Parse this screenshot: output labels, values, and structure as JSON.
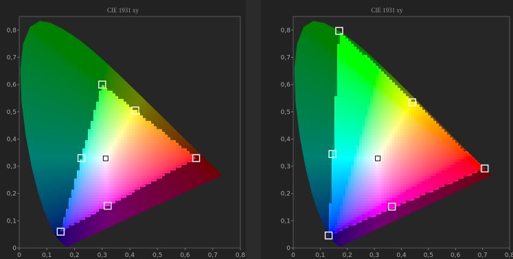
{
  "chart_data": [
    {
      "type": "scatter",
      "title": "CIE 1931 xy",
      "xlabel": "",
      "ylabel": "",
      "xlim": [
        0,
        0.8
      ],
      "ylim": [
        0,
        0.85
      ],
      "x_ticks": [
        "0",
        "0,1",
        "0,2",
        "0,3",
        "0,4",
        "0,5",
        "0,6",
        "0,7",
        "0,8"
      ],
      "y_ticks": [
        "0",
        "0,1",
        "0,2",
        "0,3",
        "0,4",
        "0,5",
        "0,6",
        "0,7",
        "0,8"
      ],
      "grid": false,
      "gamut_triangle": [
        [
          0.64,
          0.33
        ],
        [
          0.3,
          0.6
        ],
        [
          0.15,
          0.06
        ]
      ],
      "markers": [
        {
          "x": 0.64,
          "y": 0.33
        },
        {
          "x": 0.3,
          "y": 0.6
        },
        {
          "x": 0.15,
          "y": 0.06
        },
        {
          "x": 0.225,
          "y": 0.33
        },
        {
          "x": 0.42,
          "y": 0.505
        },
        {
          "x": 0.32,
          "y": 0.155
        },
        {
          "x": 0.3127,
          "y": 0.329
        }
      ]
    },
    {
      "type": "scatter",
      "title": "CIE 1931 xy",
      "xlabel": "",
      "ylabel": "",
      "xlim": [
        0,
        0.8
      ],
      "ylim": [
        0,
        0.85
      ],
      "x_ticks": [
        "0",
        "0,1",
        "0,2",
        "0,3",
        "0,4",
        "0,5",
        "0,6",
        "0,7",
        "0,8"
      ],
      "y_ticks": [
        "0",
        "0,1",
        "0,2",
        "0,3",
        "0,4",
        "0,5",
        "0,6",
        "0,7",
        "0,8"
      ],
      "grid": false,
      "gamut_triangle": [
        [
          0.708,
          0.292
        ],
        [
          0.17,
          0.797
        ],
        [
          0.131,
          0.046
        ]
      ],
      "markers": [
        {
          "x": 0.708,
          "y": 0.292
        },
        {
          "x": 0.17,
          "y": 0.797
        },
        {
          "x": 0.131,
          "y": 0.046
        },
        {
          "x": 0.145,
          "y": 0.345
        },
        {
          "x": 0.44,
          "y": 0.535
        },
        {
          "x": 0.365,
          "y": 0.152
        },
        {
          "x": 0.3127,
          "y": 0.329
        }
      ]
    }
  ]
}
